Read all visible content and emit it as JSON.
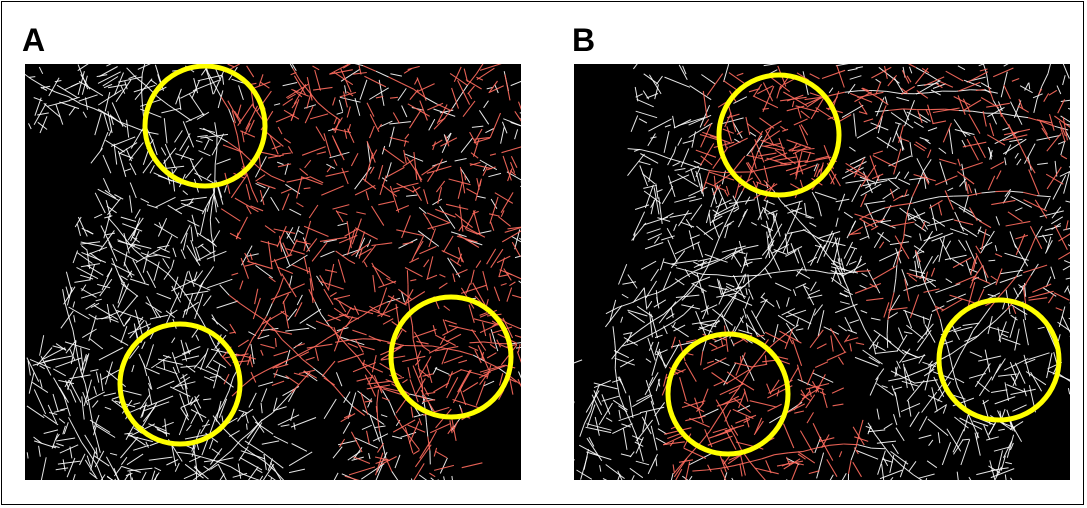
{
  "panels": [
    {
      "label": "A",
      "highlight_color": "#ff6b5e",
      "ring_color": "#ffff00",
      "highlighted_region": "north-east",
      "rings": [
        "north-west",
        "south-west",
        "east"
      ]
    },
    {
      "label": "B",
      "highlight_color": "#ff6b5e",
      "ring_color": "#ffff00",
      "highlighted_region": "north-west-and-south-west",
      "rings": [
        "north-west",
        "south-west",
        "east"
      ]
    }
  ],
  "colors": {
    "background": "#000000",
    "street": "#ffffff",
    "highlight": "#ff6b5e",
    "ring": "#ffff00",
    "frame": "#000000"
  }
}
